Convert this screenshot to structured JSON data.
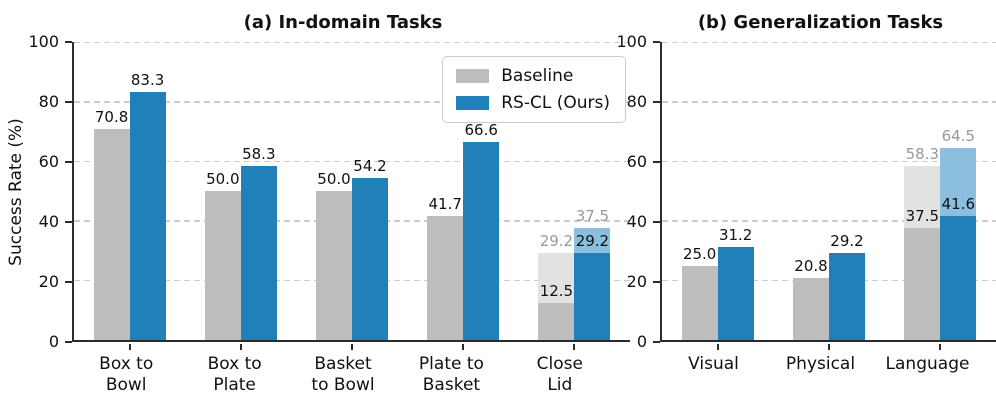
{
  "figure": {
    "axis_color": "#2b2b2b",
    "grid_color": "#cccccc",
    "overlay_label_color": "#999999",
    "background": "#ffffff"
  },
  "legend": {
    "entries": [
      {
        "label": "Baseline",
        "key": "baseline"
      },
      {
        "label": "RS-CL (Ours)",
        "key": "rscl"
      }
    ]
  },
  "chart_data": [
    {
      "type": "bar",
      "title": "(a) In-domain Tasks",
      "ylabel": "Success Rate (%)",
      "ylim": [
        0,
        100
      ],
      "yticks": [
        0,
        20,
        40,
        60,
        80,
        100
      ],
      "grid": "horizontal-dashed",
      "legend_position": "upper right",
      "categories": [
        [
          "Box to",
          "Bowl"
        ],
        [
          "Box to",
          "Plate"
        ],
        [
          "Basket",
          "to Bowl"
        ],
        [
          "Plate to",
          "Basket"
        ],
        [
          "Close",
          "Lid"
        ]
      ],
      "series": [
        {
          "name": "Baseline",
          "key": "baseline",
          "color": "#bdbdbd",
          "light_color": "#e2e2e2",
          "values": [
            70.8,
            50.0,
            50.0,
            41.7,
            12.5
          ],
          "light_values": [
            null,
            null,
            null,
            null,
            29.2
          ]
        },
        {
          "name": "RS-CL (Ours)",
          "key": "rscl",
          "color": "#2280b9",
          "light_color": "#8cbfdd",
          "values": [
            83.3,
            58.3,
            54.2,
            66.6,
            29.2
          ],
          "light_values": [
            null,
            null,
            null,
            null,
            37.5
          ]
        }
      ]
    },
    {
      "type": "bar",
      "title": "(b) Generalization Tasks",
      "ylabel": "",
      "ylim": [
        0,
        100
      ],
      "yticks": [
        0,
        20,
        40,
        60,
        80,
        100
      ],
      "grid": "horizontal-dashed",
      "legend_position": "none",
      "categories": [
        [
          "Visual"
        ],
        [
          "Physical"
        ],
        [
          "Language"
        ]
      ],
      "series": [
        {
          "name": "Baseline",
          "key": "baseline",
          "color": "#bdbdbd",
          "light_color": "#e2e2e2",
          "values": [
            25.0,
            20.8,
            37.5
          ],
          "light_values": [
            null,
            null,
            58.3
          ]
        },
        {
          "name": "RS-CL (Ours)",
          "key": "rscl",
          "color": "#2280b9",
          "light_color": "#8cbfdd",
          "values": [
            31.2,
            29.2,
            41.6
          ],
          "light_values": [
            null,
            null,
            64.5
          ]
        }
      ]
    }
  ]
}
